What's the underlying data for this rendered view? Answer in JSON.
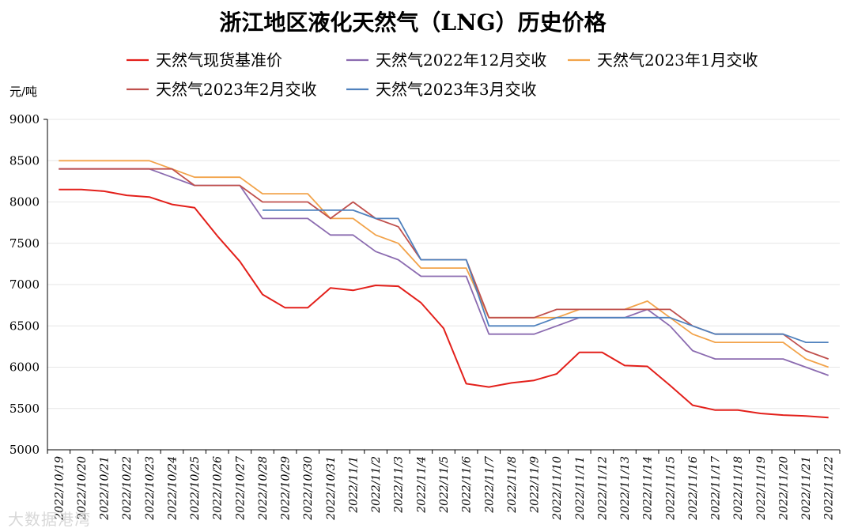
{
  "chart_data": {
    "type": "line",
    "title": "浙江地区液化天然气（LNG）历史价格",
    "ylabel": "元/吨",
    "ylim": [
      5000,
      9000
    ],
    "yticks": [
      5000,
      5500,
      6000,
      6500,
      7000,
      7500,
      8000,
      8500,
      9000
    ],
    "categories": [
      "2022/10/19",
      "2022/10/20",
      "2022/10/21",
      "2022/10/22",
      "2022/10/23",
      "2022/10/24",
      "2022/10/25",
      "2022/10/26",
      "2022/10/27",
      "2022/10/28",
      "2022/10/29",
      "2022/10/30",
      "2022/10/31",
      "2022/11/1",
      "2022/11/2",
      "2022/11/3",
      "2022/11/4",
      "2022/11/5",
      "2022/11/6",
      "2022/11/7",
      "2022/11/8",
      "2022/11/9",
      "2022/11/10",
      "2022/11/11",
      "2022/11/12",
      "2022/11/13",
      "2022/11/14",
      "2022/11/15",
      "2022/11/16",
      "2022/11/17",
      "2022/11/18",
      "2022/11/19",
      "2022/11/20",
      "2022/11/21",
      "2022/11/22"
    ],
    "series": [
      {
        "name": "天然气现货基准价",
        "color": "#e3201b",
        "values": [
          8150,
          8150,
          8130,
          8080,
          8060,
          7970,
          7930,
          7590,
          7280,
          6880,
          6720,
          6720,
          6960,
          6930,
          6990,
          6980,
          6780,
          6470,
          5800,
          5760,
          5810,
          5840,
          5920,
          6180,
          6180,
          6020,
          6010,
          5780,
          5540,
          5480,
          5480,
          5440,
          5420,
          5410,
          5390
        ]
      },
      {
        "name": "天然气2022年12月交收",
        "color": "#8b6bb0",
        "values": [
          8400,
          8400,
          8400,
          8400,
          8400,
          8300,
          8200,
          8200,
          8200,
          7800,
          7800,
          7800,
          7600,
          7600,
          7400,
          7300,
          7100,
          7100,
          7100,
          6400,
          6400,
          6400,
          6500,
          6600,
          6600,
          6600,
          6700,
          6500,
          6200,
          6100,
          6100,
          6100,
          6100,
          6000,
          5900
        ]
      },
      {
        "name": "天然气2023年1月交收",
        "color": "#f2a34a",
        "values": [
          8500,
          8500,
          8500,
          8500,
          8500,
          8400,
          8300,
          8300,
          8300,
          8100,
          8100,
          8100,
          7800,
          7800,
          7600,
          7500,
          7200,
          7200,
          7200,
          6600,
          6600,
          6600,
          6600,
          6700,
          6700,
          6700,
          6800,
          6600,
          6400,
          6300,
          6300,
          6300,
          6300,
          6100,
          6000
        ]
      },
      {
        "name": "天然气2023年2月交收",
        "color": "#c0504d",
        "values": [
          8400,
          8400,
          8400,
          8400,
          8400,
          8400,
          8200,
          8200,
          8200,
          8000,
          8000,
          8000,
          7800,
          8000,
          7800,
          7700,
          7300,
          7300,
          7300,
          6600,
          6600,
          6600,
          6700,
          6700,
          6700,
          6700,
          6700,
          6700,
          6500,
          6400,
          6400,
          6400,
          6400,
          6200,
          6100
        ]
      },
      {
        "name": "天然气2023年3月交收",
        "color": "#4f81bd",
        "values": [
          null,
          null,
          null,
          null,
          null,
          null,
          null,
          null,
          null,
          7900,
          7900,
          7900,
          7900,
          7900,
          7800,
          7800,
          7300,
          7300,
          7300,
          6500,
          6500,
          6500,
          6600,
          6600,
          6600,
          6600,
          6600,
          6600,
          6500,
          6400,
          6400,
          6400,
          6400,
          6300,
          6300
        ]
      }
    ],
    "legend_position": "top",
    "grid": true
  },
  "watermark": "大数据港湾"
}
